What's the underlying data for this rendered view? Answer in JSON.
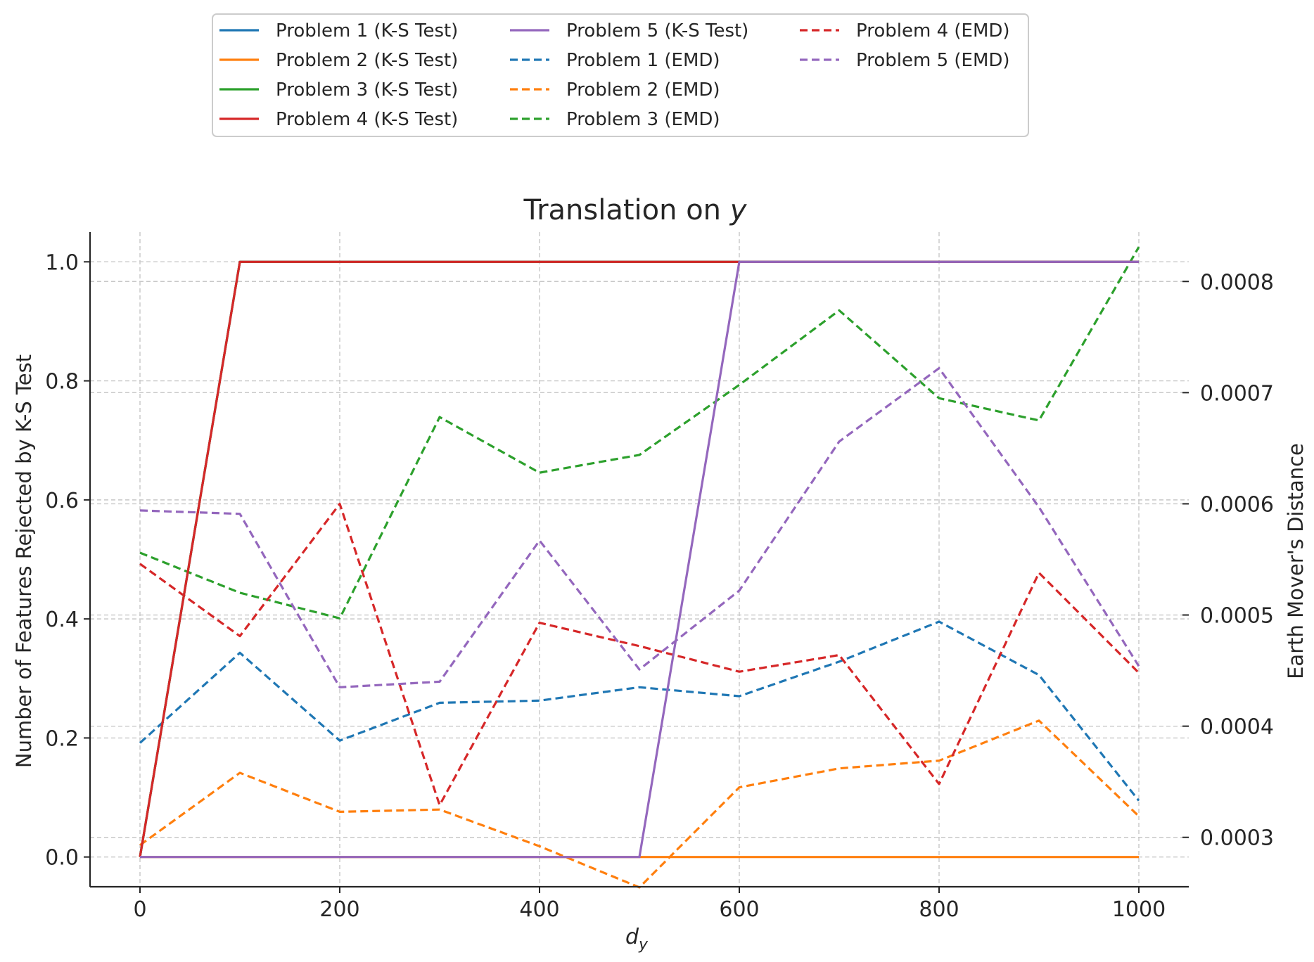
{
  "chart_data": {
    "type": "line",
    "title": "Translation on",
    "title_var": "y",
    "xlabel_var": "d",
    "xlabel_sub": "y",
    "ylabel_left": "Number of Features Rejected by K-S Test",
    "ylabel_right": "Earth Mover's Distance",
    "x": [
      0,
      100,
      200,
      300,
      400,
      500,
      600,
      700,
      800,
      900,
      1000
    ],
    "xlim": [
      -50,
      1050
    ],
    "ylim_left": [
      -0.05,
      1.05
    ],
    "ylim_right": [
      0.00025556,
      0.00084444
    ],
    "xticks": [
      "0",
      "200",
      "400",
      "600",
      "800",
      "1000"
    ],
    "xtick_values": [
      0,
      200,
      400,
      600,
      800,
      1000
    ],
    "yticks_left": [
      "0.0",
      "0.2",
      "0.4",
      "0.6",
      "0.8",
      "1.0"
    ],
    "ytick_values_left": [
      0,
      0.2,
      0.4,
      0.6,
      0.8,
      1.0
    ],
    "yticks_right": [
      "0.0003",
      "0.0004",
      "0.0005",
      "0.0006",
      "0.0007",
      "0.0008"
    ],
    "ytick_values_right": [
      0.0003,
      0.0004,
      0.0005,
      0.0006,
      0.0007,
      0.0008
    ],
    "grid": true,
    "legend_placement": "top-center, 3 columns",
    "series": [
      {
        "name": "Problem 1 (K-S Test)",
        "axis": "left",
        "style": "solid",
        "color": "#1f77b4",
        "values": [
          0,
          1,
          1,
          1,
          1,
          1,
          1,
          1,
          1,
          1,
          1
        ]
      },
      {
        "name": "Problem 2 (K-S Test)",
        "axis": "left",
        "style": "solid",
        "color": "#ff7f0e",
        "values": [
          0,
          0,
          0,
          0,
          0,
          0,
          0,
          0,
          0,
          0,
          0
        ]
      },
      {
        "name": "Problem 3 (K-S Test)",
        "axis": "left",
        "style": "solid",
        "color": "#2ca02c",
        "values": [
          0,
          1,
          1,
          1,
          1,
          1,
          1,
          1,
          1,
          1,
          1
        ]
      },
      {
        "name": "Problem 4 (K-S Test)",
        "axis": "left",
        "style": "solid",
        "color": "#d62728",
        "values": [
          0,
          1,
          1,
          1,
          1,
          1,
          1,
          1,
          1,
          1,
          1
        ]
      },
      {
        "name": "Problem 5 (K-S Test)",
        "axis": "left",
        "style": "solid",
        "color": "#9467bd",
        "values": [
          0,
          0,
          0,
          0,
          0,
          0,
          1,
          1,
          1,
          1,
          1
        ]
      },
      {
        "name": "Problem 1 (EMD)",
        "axis": "right",
        "style": "dashed",
        "color": "#1f77b4",
        "values": [
          0.000385,
          0.000466,
          0.000387,
          0.000421,
          0.000423,
          0.000435,
          0.000427,
          0.000458,
          0.000494,
          0.000446,
          0.000333
        ]
      },
      {
        "name": "Problem 2 (EMD)",
        "axis": "right",
        "style": "dashed",
        "color": "#ff7f0e",
        "values": [
          0.000293,
          0.000358,
          0.000323,
          0.000325,
          0.000292,
          0.000255,
          0.000345,
          0.000362,
          0.000369,
          0.000405,
          0.000319
        ]
      },
      {
        "name": "Problem 3 (EMD)",
        "axis": "right",
        "style": "dashed",
        "color": "#2ca02c",
        "values": [
          0.000556,
          0.00052,
          0.000497,
          0.000678,
          0.000628,
          0.000644,
          0.000707,
          0.000774,
          0.000695,
          0.000675,
          0.000831
        ]
      },
      {
        "name": "Problem 4 (EMD)",
        "axis": "right",
        "style": "dashed",
        "color": "#d62728",
        "values": [
          0.000546,
          0.000481,
          0.0006,
          0.000329,
          0.000493,
          0.000472,
          0.000449,
          0.000464,
          0.000348,
          0.000538,
          0.000448
        ]
      },
      {
        "name": "Problem 5 (EMD)",
        "axis": "right",
        "style": "dashed",
        "color": "#9467bd",
        "values": [
          0.000594,
          0.000591,
          0.000435,
          0.00044,
          0.000567,
          0.000451,
          0.000522,
          0.000656,
          0.000722,
          0.000597,
          0.000454
        ]
      }
    ]
  }
}
